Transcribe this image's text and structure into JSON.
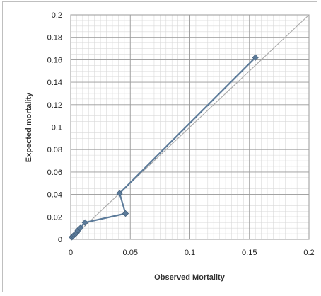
{
  "chart_data": {
    "type": "scatter",
    "title": "",
    "xlabel": "Observed Mortality",
    "ylabel": "Expected mortality",
    "xlim": [
      0,
      0.2
    ],
    "ylim": [
      0,
      0.2
    ],
    "x_ticks": [
      "0",
      "0.05",
      "0.1",
      "0.15",
      "0.2"
    ],
    "y_ticks": [
      "0",
      "0.02",
      "0.04",
      "0.06",
      "0.08",
      "0.1",
      "0.12",
      "0.14",
      "0.16",
      "0.18",
      "0.2"
    ],
    "grid": true,
    "series": [
      {
        "points": [
          {
            "x": 0.001,
            "y": 0.002
          },
          {
            "x": 0.002,
            "y": 0.003
          },
          {
            "x": 0.003,
            "y": 0.004
          },
          {
            "x": 0.004,
            "y": 0.005
          },
          {
            "x": 0.005,
            "y": 0.006
          },
          {
            "x": 0.006,
            "y": 0.008
          },
          {
            "x": 0.008,
            "y": 0.01
          },
          {
            "x": 0.012,
            "y": 0.015
          },
          {
            "x": 0.046,
            "y": 0.023
          },
          {
            "x": 0.041,
            "y": 0.041
          },
          {
            "x": 0.155,
            "y": 0.162
          }
        ],
        "color": "#5b7a99",
        "marker": "diamond"
      }
    ],
    "reference_line": {
      "from": [
        0,
        0
      ],
      "to": [
        0.2,
        0.2
      ],
      "color": "#a9a9a9"
    }
  }
}
